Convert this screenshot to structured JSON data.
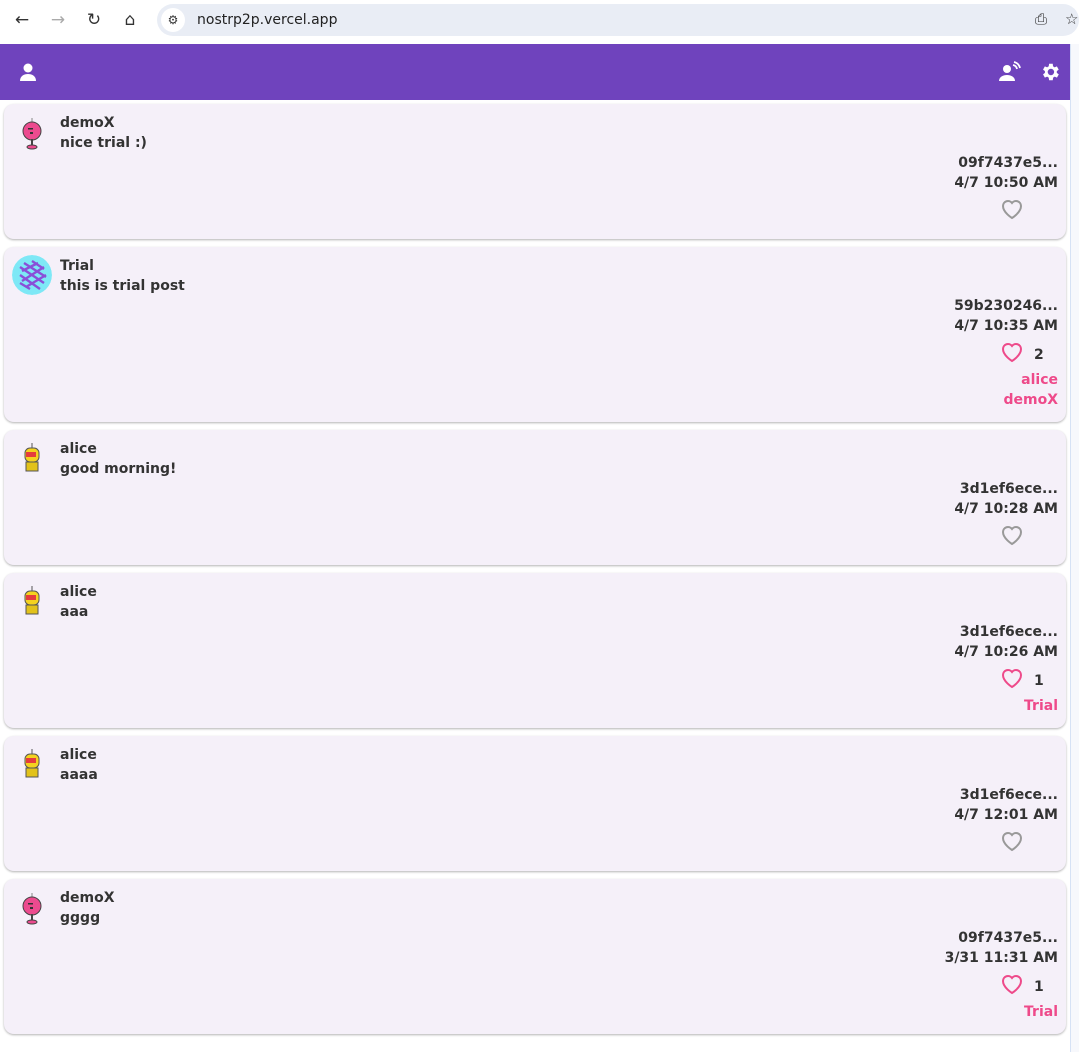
{
  "browser": {
    "url": "nostrp2p.vercel.app"
  },
  "appbar": {
    "color": "#6f43bd",
    "icons": [
      "person-icon",
      "connect-icon",
      "gear-icon"
    ]
  },
  "posts": [
    {
      "author": "demoX",
      "avatar": "pink-robot",
      "text": "nice trial :)",
      "id": "09f7437e5...",
      "time": "4/7 10:50 AM",
      "liked": false,
      "count": "",
      "likers": []
    },
    {
      "author": "Trial",
      "avatar": "pattern",
      "text": "this is trial post",
      "id": "59b230246...",
      "time": "4/7 10:35 AM",
      "liked": true,
      "count": "2",
      "likers": [
        "alice",
        "demoX"
      ]
    },
    {
      "author": "alice",
      "avatar": "yellow-robot",
      "text": "good morning!",
      "id": "3d1ef6ece...",
      "time": "4/7 10:28 AM",
      "liked": false,
      "count": "",
      "likers": []
    },
    {
      "author": "alice",
      "avatar": "yellow-robot",
      "text": "aaa",
      "id": "3d1ef6ece...",
      "time": "4/7 10:26 AM",
      "liked": true,
      "count": "1",
      "likers": [
        "Trial"
      ]
    },
    {
      "author": "alice",
      "avatar": "yellow-robot",
      "text": "aaaa",
      "id": "3d1ef6ece...",
      "time": "4/7 12:01 AM",
      "liked": false,
      "count": "",
      "likers": []
    },
    {
      "author": "demoX",
      "avatar": "pink-robot",
      "text": "gggg",
      "id": "09f7437e5...",
      "time": "3/31 11:31 AM",
      "liked": true,
      "count": "1",
      "likers": [
        "Trial"
      ]
    }
  ],
  "colors": {
    "liked": "#ee4a8a",
    "unliked": "#999999",
    "card": "#f5f0f9"
  }
}
